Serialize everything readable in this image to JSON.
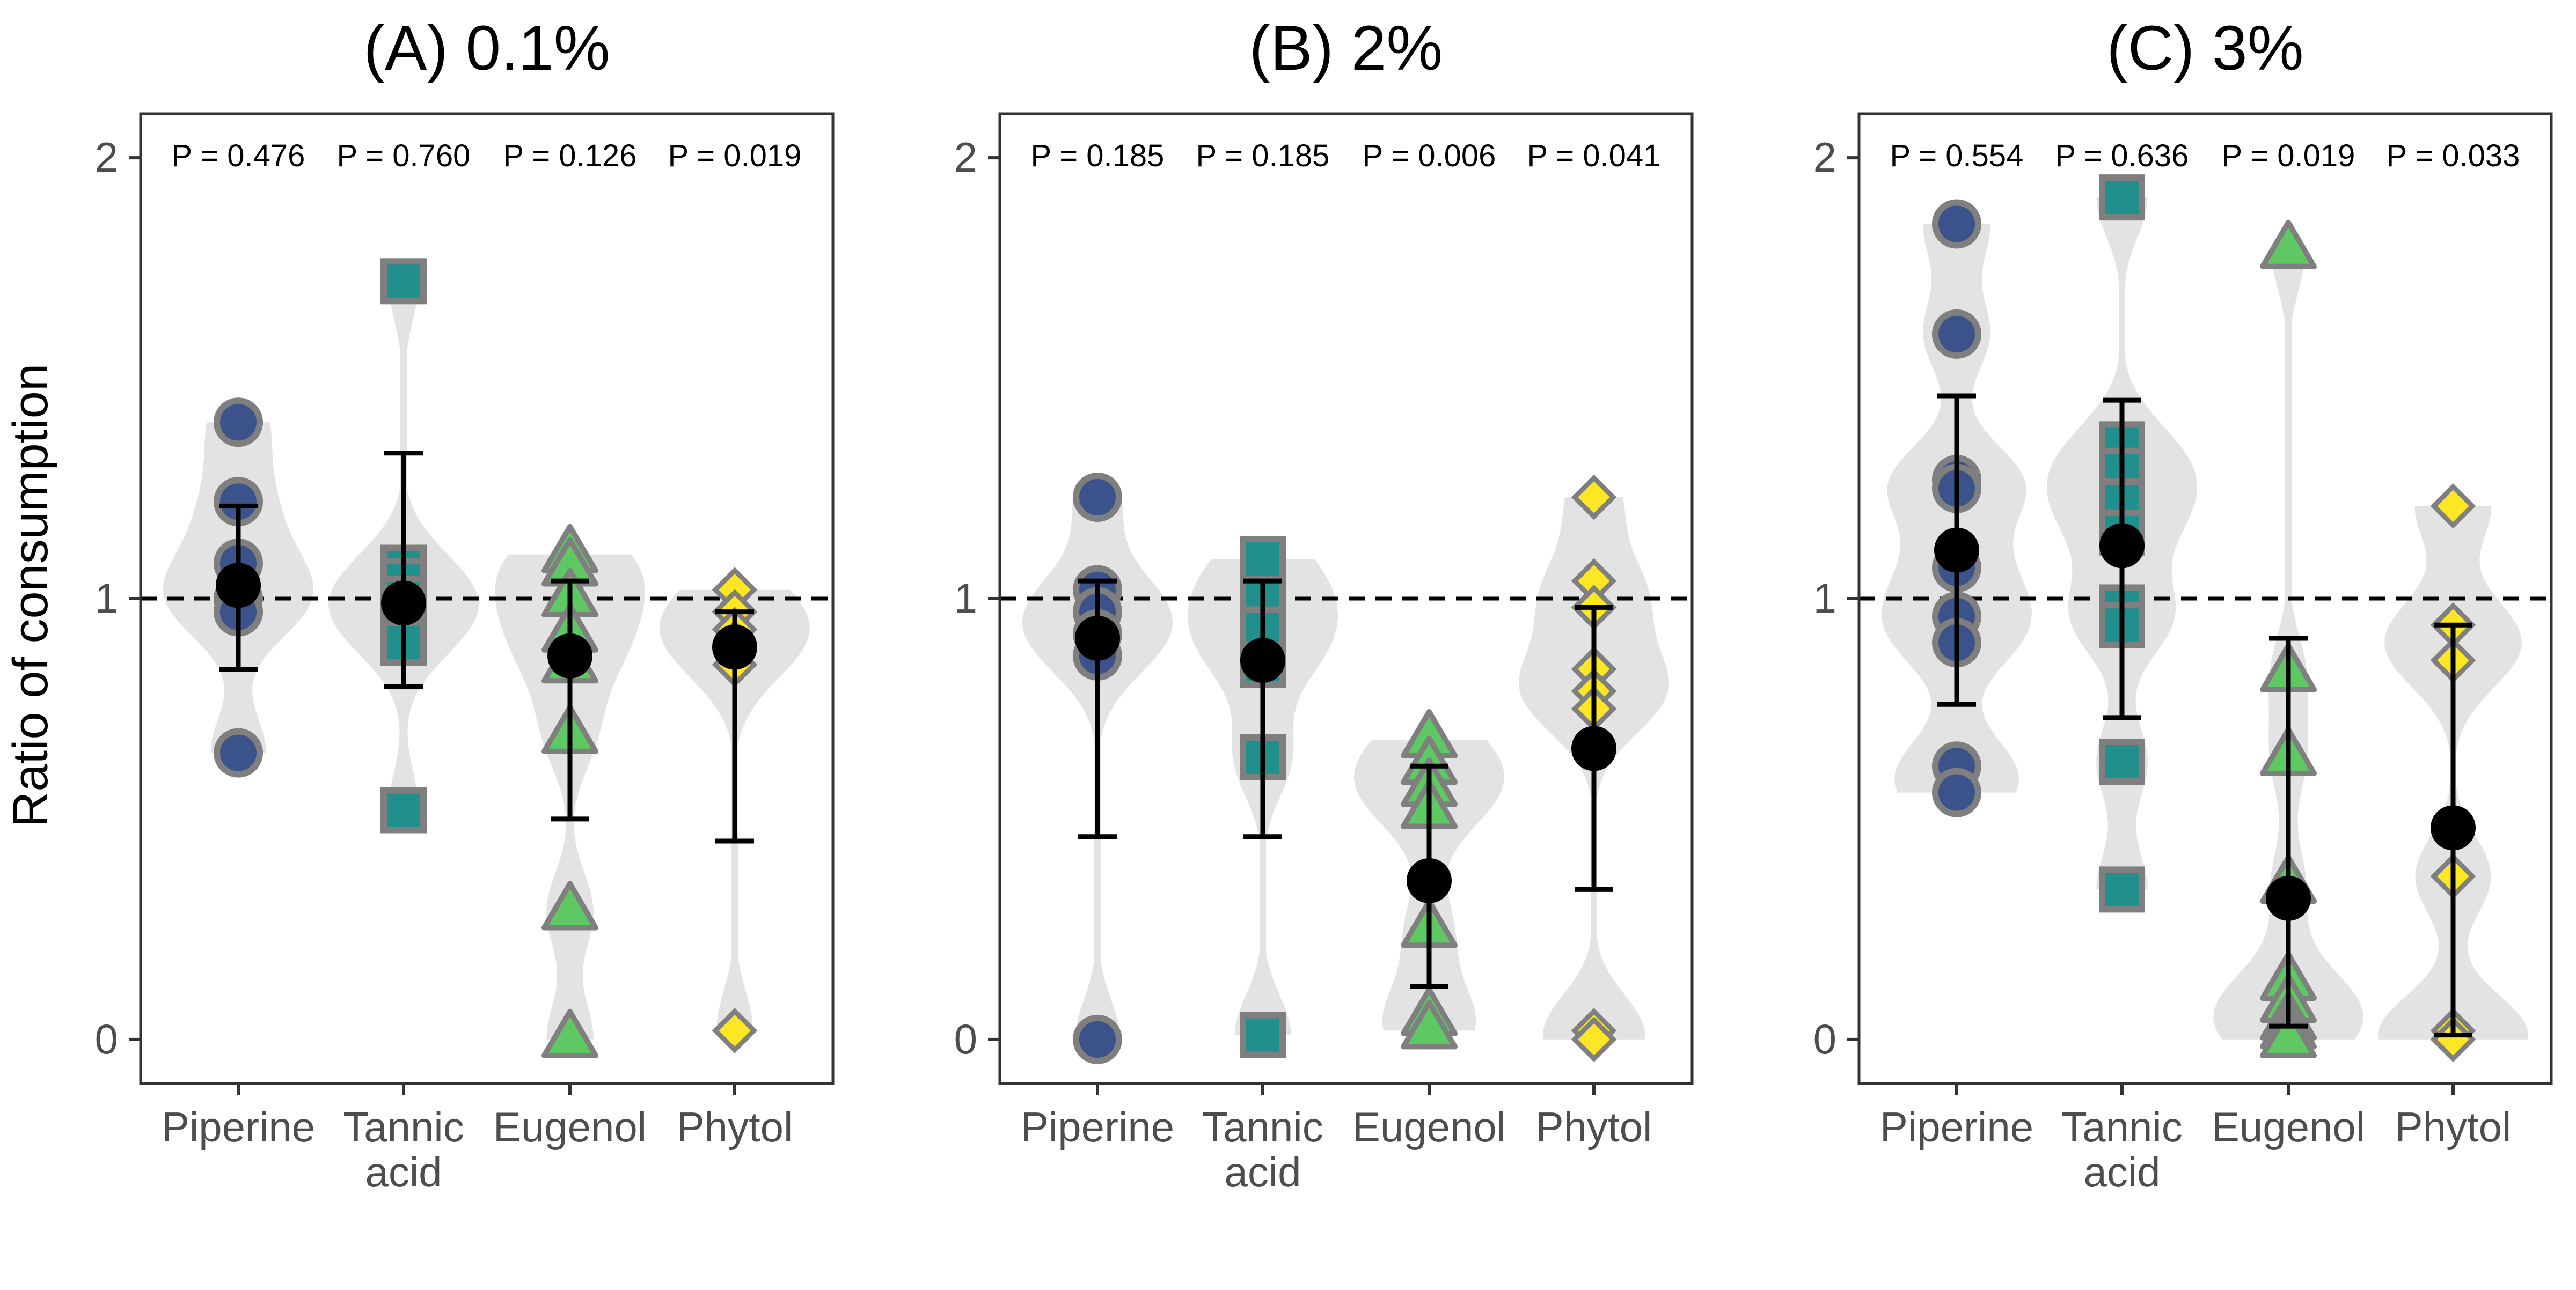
{
  "figure": {
    "ylabel": "Ratio of consumption",
    "colors": {
      "Piperine": "#3b528b",
      "Tannic acid": "#21908c",
      "Eugenol": "#5ec962",
      "Phytol": "#fde725",
      "outline": "#7f7f7f",
      "violin": "#e3e3e3",
      "mean": "#000000"
    },
    "shapes": {
      "Piperine": "circle",
      "Tannic acid": "square",
      "Eugenol": "triangle",
      "Phytol": "diamond"
    }
  },
  "chart_data": [
    {
      "type": "scatter",
      "title": "(A) 0.1%",
      "ylabel": "Ratio of consumption",
      "ylim": [
        -0.1,
        2.1
      ],
      "yticks": [
        0,
        1,
        2
      ],
      "reference_line": 1,
      "grid": false,
      "categories": [
        {
          "label": "Piperine",
          "lines": [
            "Piperine"
          ],
          "p": "P = 0.476",
          "mean": 1.03,
          "ci": [
            0.84,
            1.21
          ],
          "points": [
            1.4,
            1.22,
            1.08,
            1.0,
            0.97,
            0.65
          ]
        },
        {
          "label": "Tannic acid",
          "lines": [
            "Tannic",
            "acid"
          ],
          "p": "P = 0.760",
          "mean": 0.99,
          "ci": [
            0.8,
            1.33
          ],
          "points": [
            1.72,
            1.07,
            1.04,
            1.0,
            0.97,
            0.94,
            0.9,
            0.52
          ]
        },
        {
          "label": "Eugenol",
          "lines": [
            "Eugenol"
          ],
          "p": "P = 0.126",
          "mean": 0.87,
          "ci": [
            0.5,
            1.04
          ],
          "points": [
            1.1,
            1.07,
            1.0,
            0.92,
            0.85,
            0.69,
            0.29,
            0.0
          ]
        },
        {
          "label": "Phytol",
          "lines": [
            "Phytol"
          ],
          "p": "P = 0.019",
          "mean": 0.89,
          "ci": [
            0.45,
            0.97
          ],
          "points": [
            1.02,
            0.97,
            0.93,
            0.9,
            0.85,
            0.02
          ]
        }
      ]
    },
    {
      "type": "scatter",
      "title": "(B) 2%",
      "ylabel": "Ratio of consumption",
      "ylim": [
        -0.1,
        2.1
      ],
      "yticks": [
        0,
        1,
        2
      ],
      "reference_line": 1,
      "grid": false,
      "categories": [
        {
          "label": "Piperine",
          "lines": [
            "Piperine"
          ],
          "p": "P = 0.185",
          "mean": 0.91,
          "ci": [
            0.46,
            1.04
          ],
          "points": [
            1.23,
            1.02,
            0.97,
            0.92,
            0.87,
            0.0
          ]
        },
        {
          "label": "Tannic acid",
          "lines": [
            "Tannic",
            "acid"
          ],
          "p": "P = 0.185",
          "mean": 0.86,
          "ci": [
            0.46,
            1.04
          ],
          "points": [
            1.09,
            1.0,
            0.93,
            0.85,
            0.64,
            0.01
          ]
        },
        {
          "label": "Eugenol",
          "lines": [
            "Eugenol"
          ],
          "p": "P = 0.006",
          "mean": 0.36,
          "ci": [
            0.12,
            0.62
          ],
          "points": [
            0.68,
            0.62,
            0.57,
            0.52,
            0.25,
            0.05,
            0.02
          ]
        },
        {
          "label": "Phytol",
          "lines": [
            "Phytol"
          ],
          "p": "P = 0.041",
          "mean": 0.66,
          "ci": [
            0.34,
            0.98
          ],
          "points": [
            1.23,
            1.04,
            0.98,
            0.84,
            0.79,
            0.75,
            0.02,
            0.0
          ]
        }
      ]
    },
    {
      "type": "scatter",
      "title": "(C) 3%",
      "ylabel": "Ratio of consumption",
      "ylim": [
        -0.1,
        2.1
      ],
      "yticks": [
        0,
        1,
        2
      ],
      "reference_line": 1,
      "grid": false,
      "categories": [
        {
          "label": "Piperine",
          "lines": [
            "Piperine"
          ],
          "p": "P = 0.554",
          "mean": 1.11,
          "ci": [
            0.76,
            1.46
          ],
          "points": [
            1.85,
            1.6,
            1.27,
            1.25,
            1.07,
            0.96,
            0.9,
            0.62,
            0.56
          ]
        },
        {
          "label": "Tannic acid",
          "lines": [
            "Tannic",
            "acid"
          ],
          "p": "P = 0.636",
          "mean": 1.12,
          "ci": [
            0.73,
            1.45
          ],
          "points": [
            1.91,
            1.35,
            1.29,
            1.22,
            1.15,
            0.98,
            0.94,
            0.63,
            0.34
          ]
        },
        {
          "label": "Eugenol",
          "lines": [
            "Eugenol"
          ],
          "p": "P = 0.019",
          "mean": 0.32,
          "ci": [
            0.03,
            0.91
          ],
          "points": [
            1.79,
            0.83,
            0.64,
            0.35,
            0.13,
            0.08,
            0.04,
            0.02,
            0.0
          ]
        },
        {
          "label": "Phytol",
          "lines": [
            "Phytol"
          ],
          "p": "P = 0.033",
          "mean": 0.48,
          "ci": [
            0.01,
            0.94
          ],
          "points": [
            1.21,
            0.94,
            0.86,
            0.37,
            0.02,
            0.0
          ]
        }
      ]
    }
  ]
}
